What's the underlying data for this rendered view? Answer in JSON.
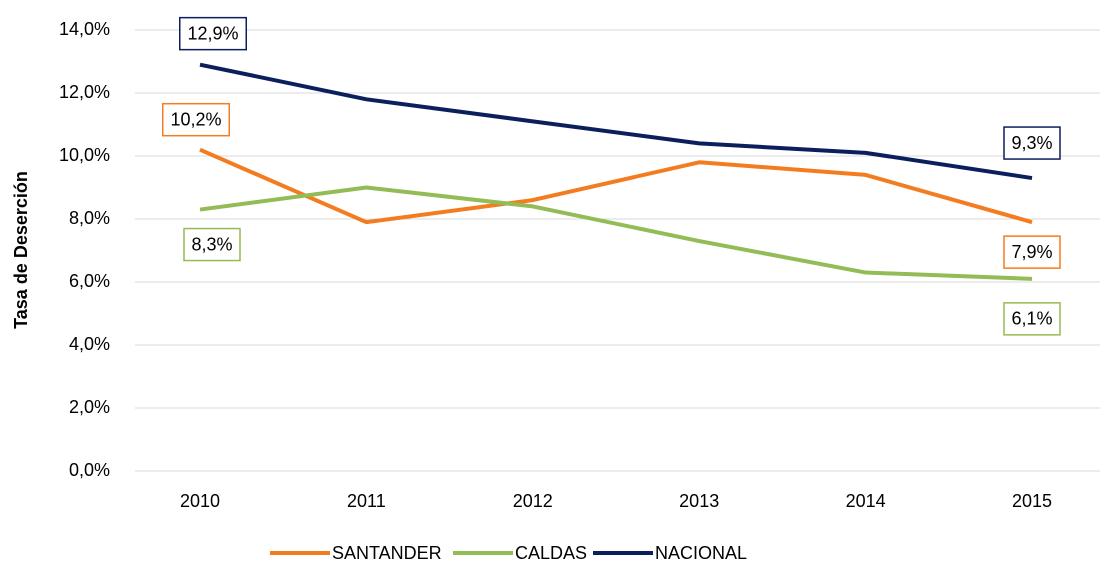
{
  "chart_data": {
    "type": "line",
    "y_label": "Tasa de Deserción",
    "categories": [
      "2010",
      "2011",
      "2012",
      "2013",
      "2014",
      "2015"
    ],
    "series": [
      {
        "name": "SANTANDER",
        "color": "#f47c20",
        "values": [
          10.2,
          7.9,
          8.6,
          9.8,
          9.4,
          7.9
        ],
        "value_labels": [
          "10,2%",
          null,
          null,
          null,
          null,
          "7,9%"
        ]
      },
      {
        "name": "CALDAS",
        "color": "#93bb56",
        "values": [
          8.3,
          9.0,
          8.4,
          7.3,
          6.3,
          6.1
        ],
        "value_labels": [
          "8,3%",
          null,
          null,
          null,
          null,
          "6,1%"
        ]
      },
      {
        "name": "NACIONAL",
        "color": "#0b1f5c",
        "values": [
          12.9,
          11.8,
          11.1,
          10.4,
          10.1,
          9.3
        ],
        "value_labels": [
          "12,9%",
          null,
          null,
          null,
          null,
          "9,3%"
        ]
      }
    ],
    "ylim": [
      0,
      14
    ],
    "yticks": [
      {
        "value": 0,
        "label": "0,0%"
      },
      {
        "value": 2,
        "label": "2,0%"
      },
      {
        "value": 4,
        "label": "4,0%"
      },
      {
        "value": 6,
        "label": "6,0%"
      },
      {
        "value": 8,
        "label": "8,0%"
      },
      {
        "value": 10,
        "label": "10,0%"
      },
      {
        "value": 12,
        "label": "12,0%"
      },
      {
        "value": 14,
        "label": "14,0%"
      }
    ],
    "grid": true,
    "legend": "bottom"
  }
}
